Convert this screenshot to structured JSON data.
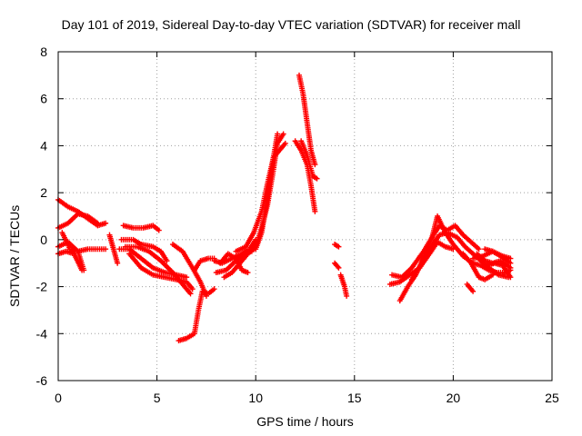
{
  "chart_data": {
    "type": "scatter",
    "title": "Day 101 of 2019, Sidereal Day-to-day VTEC variation (SDTVAR) for receiver mall",
    "xlabel": "GPS time / hours",
    "ylabel": "SDTVAR / TECUs",
    "xlim": [
      0,
      25
    ],
    "ylim": [
      -6,
      8
    ],
    "xticks": [
      0,
      5,
      10,
      15,
      20,
      25
    ],
    "yticks": [
      -6,
      -4,
      -2,
      0,
      2,
      4,
      6,
      8
    ],
    "grid": true,
    "marker": "+",
    "color": "#ff0000",
    "tracks": [
      {
        "name": "t1",
        "points": [
          [
            0.0,
            1.7
          ],
          [
            0.5,
            1.4
          ],
          [
            1.0,
            1.2
          ],
          [
            1.5,
            0.9
          ],
          [
            2.0,
            0.6
          ],
          [
            2.4,
            0.7
          ]
        ]
      },
      {
        "name": "t2",
        "points": [
          [
            0.0,
            0.5
          ],
          [
            0.5,
            0.7
          ],
          [
            1.0,
            1.1
          ],
          [
            1.5,
            1.0
          ],
          [
            2.0,
            0.7
          ]
        ]
      },
      {
        "name": "t3",
        "points": [
          [
            0.0,
            -0.6
          ],
          [
            0.4,
            -0.5
          ],
          [
            0.8,
            -0.6
          ],
          [
            1.2,
            -1.3
          ]
        ]
      },
      {
        "name": "t4",
        "points": [
          [
            0.0,
            -0.3
          ],
          [
            0.5,
            -0.1
          ],
          [
            1.0,
            -0.5
          ],
          [
            1.5,
            -0.4
          ],
          [
            2.0,
            -0.4
          ],
          [
            2.4,
            -0.4
          ]
        ]
      },
      {
        "name": "t5",
        "points": [
          [
            0.2,
            0.3
          ],
          [
            0.6,
            -0.4
          ],
          [
            1.0,
            -0.5
          ],
          [
            1.3,
            -1.3
          ]
        ]
      },
      {
        "name": "t6",
        "points": [
          [
            2.6,
            0.2
          ],
          [
            2.8,
            -0.4
          ],
          [
            3.0,
            -1.0
          ]
        ]
      },
      {
        "name": "t7",
        "points": [
          [
            3.3,
            0.6
          ],
          [
            3.8,
            0.5
          ],
          [
            4.3,
            0.5
          ],
          [
            4.8,
            0.6
          ],
          [
            5.1,
            0.4
          ]
        ]
      },
      {
        "name": "t8",
        "points": [
          [
            3.2,
            0.0
          ],
          [
            3.8,
            0.0
          ],
          [
            4.2,
            -0.2
          ],
          [
            4.8,
            -0.3
          ],
          [
            5.2,
            -0.5
          ],
          [
            5.5,
            -0.9
          ]
        ]
      },
      {
        "name": "t9",
        "points": [
          [
            3.1,
            -0.4
          ],
          [
            3.6,
            -0.4
          ],
          [
            4.2,
            -0.8
          ],
          [
            4.8,
            -1.2
          ],
          [
            5.4,
            -1.4
          ],
          [
            6.0,
            -1.5
          ],
          [
            6.5,
            -1.6
          ]
        ]
      },
      {
        "name": "t10",
        "points": [
          [
            3.4,
            -0.3
          ],
          [
            4.0,
            -0.3
          ],
          [
            4.6,
            -0.5
          ],
          [
            5.2,
            -0.9
          ],
          [
            5.8,
            -1.4
          ],
          [
            6.3,
            -1.9
          ],
          [
            6.7,
            -2.3
          ]
        ]
      },
      {
        "name": "t11",
        "points": [
          [
            3.6,
            -0.6
          ],
          [
            4.2,
            -1.2
          ],
          [
            4.8,
            -1.5
          ],
          [
            5.4,
            -1.6
          ],
          [
            6.0,
            -1.7
          ],
          [
            6.5,
            -1.8
          ],
          [
            6.8,
            -2.1
          ]
        ]
      },
      {
        "name": "t12",
        "points": [
          [
            5.8,
            -0.2
          ],
          [
            6.3,
            -0.5
          ],
          [
            6.8,
            -1.2
          ],
          [
            7.2,
            -1.8
          ],
          [
            7.5,
            -2.4
          ]
        ]
      },
      {
        "name": "t13",
        "points": [
          [
            6.1,
            -4.3
          ],
          [
            6.5,
            -4.2
          ],
          [
            6.9,
            -4.0
          ],
          [
            7.1,
            -3.0
          ],
          [
            7.3,
            -2.2
          ],
          [
            7.6,
            -2.3
          ],
          [
            7.9,
            -2.1
          ]
        ]
      },
      {
        "name": "t14",
        "points": [
          [
            6.9,
            -1.3
          ],
          [
            7.2,
            -0.9
          ],
          [
            7.6,
            -0.8
          ],
          [
            7.9,
            -0.8
          ]
        ]
      },
      {
        "name": "t15",
        "points": [
          [
            7.9,
            -0.9
          ],
          [
            8.3,
            -1.0
          ],
          [
            8.8,
            -0.8
          ],
          [
            9.3,
            -0.6
          ],
          [
            9.7,
            -0.4
          ],
          [
            10.0,
            0.0
          ]
        ]
      },
      {
        "name": "t16",
        "points": [
          [
            8.0,
            -1.4
          ],
          [
            8.5,
            -1.3
          ],
          [
            9.0,
            -0.9
          ],
          [
            9.4,
            -0.6
          ],
          [
            9.8,
            -0.5
          ],
          [
            10.1,
            -0.1
          ]
        ]
      },
      {
        "name": "t17",
        "points": [
          [
            8.2,
            -1.0
          ],
          [
            8.6,
            -0.6
          ],
          [
            9.0,
            -0.8
          ],
          [
            9.3,
            -1.3
          ],
          [
            9.6,
            -1.4
          ]
        ]
      },
      {
        "name": "t18",
        "points": [
          [
            8.4,
            -1.6
          ],
          [
            8.8,
            -1.4
          ],
          [
            9.2,
            -1.0
          ],
          [
            9.6,
            -0.6
          ],
          [
            10.0,
            -0.3
          ],
          [
            10.3,
            0.5
          ],
          [
            10.6,
            1.5
          ],
          [
            10.9,
            3.0
          ],
          [
            11.1,
            4.1
          ],
          [
            11.4,
            4.5
          ]
        ]
      },
      {
        "name": "t19",
        "points": [
          [
            9.0,
            -0.5
          ],
          [
            9.5,
            -0.3
          ],
          [
            9.9,
            0.3
          ],
          [
            10.3,
            1.2
          ],
          [
            10.6,
            2.4
          ],
          [
            10.9,
            3.5
          ],
          [
            11.2,
            3.8
          ],
          [
            11.5,
            4.1
          ]
        ]
      },
      {
        "name": "t20",
        "points": [
          [
            10.0,
            -0.4
          ],
          [
            10.3,
            0.3
          ],
          [
            10.6,
            1.8
          ],
          [
            10.9,
            3.5
          ],
          [
            11.1,
            4.5
          ]
        ]
      },
      {
        "name": "t21",
        "points": [
          [
            12.0,
            4.2
          ],
          [
            12.3,
            3.8
          ],
          [
            12.6,
            3.2
          ],
          [
            12.8,
            2.3
          ],
          [
            13.0,
            1.2
          ]
        ]
      },
      {
        "name": "t22",
        "points": [
          [
            12.2,
            7.0
          ],
          [
            12.4,
            6.2
          ],
          [
            12.6,
            5.0
          ],
          [
            12.8,
            3.8
          ],
          [
            13.0,
            3.2
          ]
        ]
      },
      {
        "name": "t23",
        "points": [
          [
            12.3,
            4.2
          ],
          [
            12.6,
            3.6
          ],
          [
            12.9,
            2.7
          ],
          [
            13.1,
            2.6
          ]
        ]
      },
      {
        "name": "t24",
        "points": [
          [
            14.0,
            -0.2
          ],
          [
            14.2,
            -0.3
          ]
        ]
      },
      {
        "name": "t25",
        "points": [
          [
            14.0,
            -1.0
          ],
          [
            14.2,
            -1.2
          ]
        ]
      },
      {
        "name": "t26",
        "points": [
          [
            14.3,
            -1.5
          ],
          [
            14.5,
            -2.0
          ],
          [
            14.6,
            -2.4
          ]
        ]
      },
      {
        "name": "t27",
        "points": [
          [
            16.8,
            -1.9
          ],
          [
            17.3,
            -1.8
          ],
          [
            17.8,
            -1.5
          ],
          [
            18.3,
            -1.2
          ],
          [
            18.8,
            -0.6
          ],
          [
            19.2,
            -0.1
          ],
          [
            19.6,
            -0.3
          ],
          [
            20.0,
            -0.4
          ]
        ]
      },
      {
        "name": "t28",
        "points": [
          [
            16.9,
            -1.5
          ],
          [
            17.4,
            -1.6
          ],
          [
            17.9,
            -1.2
          ],
          [
            18.5,
            -0.5
          ],
          [
            19.0,
            0.2
          ],
          [
            19.3,
            0.6
          ],
          [
            19.7,
            0.4
          ],
          [
            20.1,
            0.6
          ],
          [
            20.5,
            0.2
          ],
          [
            20.9,
            -0.1
          ],
          [
            21.3,
            -0.4
          ]
        ]
      },
      {
        "name": "t29",
        "points": [
          [
            17.3,
            -2.6
          ],
          [
            17.7,
            -2.0
          ],
          [
            18.1,
            -1.5
          ],
          [
            18.5,
            -0.8
          ],
          [
            18.9,
            -0.3
          ],
          [
            19.3,
            0.2
          ],
          [
            19.7,
            0.3
          ],
          [
            20.2,
            0.1
          ],
          [
            20.6,
            -0.3
          ],
          [
            21.0,
            -0.6
          ],
          [
            21.4,
            -0.9
          ],
          [
            21.8,
            -1.2
          ],
          [
            22.3,
            -1.5
          ],
          [
            22.8,
            -1.6
          ]
        ]
      },
      {
        "name": "t30",
        "points": [
          [
            17.9,
            -1.7
          ],
          [
            18.4,
            -1.0
          ],
          [
            18.9,
            0.0
          ],
          [
            19.2,
            1.0
          ],
          [
            19.6,
            0.3
          ],
          [
            20.0,
            -0.2
          ],
          [
            20.5,
            -0.7
          ],
          [
            21.0,
            -1.0
          ],
          [
            21.4,
            -1.1
          ],
          [
            21.8,
            -1.3
          ],
          [
            22.2,
            -1.4
          ],
          [
            22.6,
            -1.4
          ],
          [
            22.9,
            -1.3
          ]
        ]
      },
      {
        "name": "t31",
        "points": [
          [
            20.5,
            -0.6
          ],
          [
            20.9,
            -1.0
          ],
          [
            21.3,
            -1.6
          ],
          [
            21.6,
            -1.7
          ],
          [
            22.0,
            -1.5
          ]
        ]
      },
      {
        "name": "t32",
        "points": [
          [
            21.0,
            -0.8
          ],
          [
            21.5,
            -0.7
          ],
          [
            22.0,
            -0.5
          ],
          [
            22.5,
            -0.7
          ],
          [
            22.9,
            -0.8
          ]
        ]
      },
      {
        "name": "t33",
        "points": [
          [
            21.6,
            -0.4
          ],
          [
            22.0,
            -0.5
          ],
          [
            22.4,
            -0.7
          ],
          [
            22.9,
            -1.0
          ]
        ]
      },
      {
        "name": "t34",
        "points": [
          [
            21.2,
            -0.6
          ],
          [
            21.6,
            -0.9
          ],
          [
            22.0,
            -1.0
          ],
          [
            22.4,
            -0.9
          ],
          [
            22.9,
            -1.2
          ]
        ]
      },
      {
        "name": "t35",
        "points": [
          [
            21.7,
            -1.1
          ],
          [
            22.1,
            -1.0
          ],
          [
            22.5,
            -1.1
          ],
          [
            22.9,
            -1.6
          ]
        ]
      },
      {
        "name": "t36",
        "points": [
          [
            20.7,
            -1.9
          ],
          [
            21.0,
            -2.2
          ]
        ]
      }
    ]
  }
}
